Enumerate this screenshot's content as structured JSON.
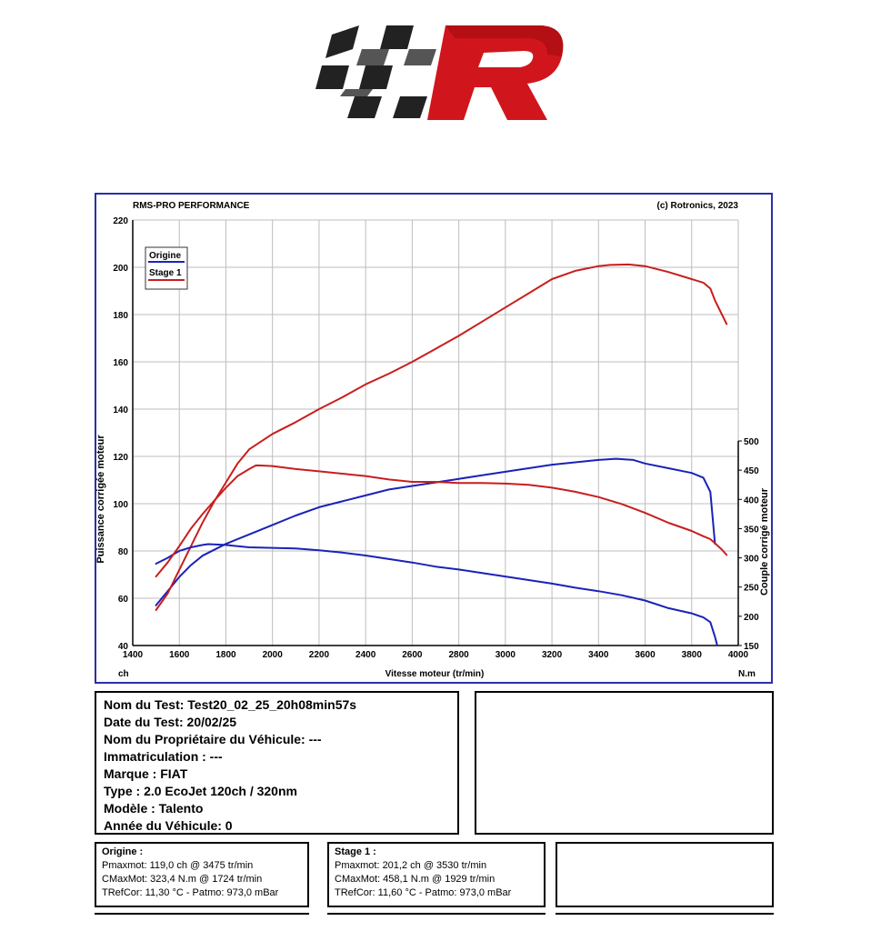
{
  "colors": {
    "origine": "#1a22b8",
    "stage1": "#c81e1e",
    "frame": "#2b2fa8",
    "grid": "#bdbdbd"
  },
  "logo": {
    "icon": "racing-r-logo"
  },
  "chart_data": {
    "type": "line",
    "title_left": "RMS-PRO PERFORMANCE",
    "title_right": "(c) Rotronics, 2023",
    "xlabel": "Vitesse moteur (tr/min)",
    "ylabel_left": "Puissance corrigée moteur",
    "ylabel_right": "Couple corrigé moteur",
    "unit_left": "ch",
    "unit_right": "N.m",
    "xlim": [
      1400,
      4000
    ],
    "ylim_left": [
      40,
      220
    ],
    "ylim_right": [
      150,
      500
    ],
    "x_ticks": [
      "1400",
      "1600",
      "1800",
      "2000",
      "2200",
      "2400",
      "2600",
      "2800",
      "3000",
      "3200",
      "3400",
      "3600",
      "3800",
      "4000"
    ],
    "y_left_ticks": [
      "40",
      "60",
      "80",
      "100",
      "120",
      "140",
      "160",
      "180",
      "200",
      "220"
    ],
    "y_right_ticks": [
      "150",
      "200",
      "250",
      "300",
      "350",
      "400",
      "450",
      "500"
    ],
    "grid": true,
    "legend_position": "top-left",
    "series": [
      {
        "name": "Origine",
        "kind": "power",
        "axis": "left",
        "color": "#1a22b8",
        "x": [
          1500,
          1550,
          1600,
          1650,
          1700,
          1800,
          1900,
          2000,
          2100,
          2200,
          2300,
          2400,
          2500,
          2600,
          2700,
          2800,
          2900,
          3000,
          3100,
          3200,
          3300,
          3400,
          3475,
          3550,
          3600,
          3700,
          3800,
          3850,
          3880,
          3900
        ],
        "y": [
          57,
          63,
          69,
          74,
          78,
          83,
          87,
          91,
          95,
          98.5,
          101,
          103.5,
          106,
          107.5,
          109,
          110.5,
          112,
          113.5,
          115,
          116.5,
          117.5,
          118.5,
          119,
          118.5,
          117,
          115,
          113,
          111,
          105,
          83
        ]
      },
      {
        "name": "Stage 1",
        "kind": "power",
        "axis": "left",
        "color": "#c81e1e",
        "x": [
          1500,
          1550,
          1600,
          1650,
          1700,
          1750,
          1800,
          1850,
          1900,
          2000,
          2100,
          2200,
          2300,
          2400,
          2500,
          2600,
          2700,
          2800,
          2900,
          3000,
          3100,
          3200,
          3300,
          3400,
          3450,
          3530,
          3600,
          3700,
          3800,
          3850,
          3880,
          3900,
          3930,
          3950
        ],
        "y": [
          55,
          62,
          72,
          82,
          92,
          101,
          109,
          117,
          123,
          129.5,
          134.5,
          140,
          145,
          150.5,
          155,
          160,
          165.5,
          171,
          177,
          183,
          189,
          195,
          198.5,
          200.5,
          201,
          201.2,
          200.5,
          198,
          195,
          193.5,
          191,
          186,
          180,
          176
        ]
      },
      {
        "name": "Origine",
        "kind": "torque",
        "axis": "right",
        "color": "#1a22b8",
        "x": [
          1500,
          1550,
          1600,
          1650,
          1700,
          1724,
          1800,
          1900,
          2000,
          2100,
          2200,
          2300,
          2400,
          2500,
          2600,
          2700,
          2800,
          2900,
          3000,
          3100,
          3200,
          3300,
          3400,
          3500,
          3600,
          3700,
          3800,
          3850,
          3880,
          3900,
          3910
        ],
        "y": [
          290,
          300,
          312,
          318,
          322,
          323.4,
          322,
          318,
          317,
          316,
          313,
          309,
          304,
          298,
          292,
          285,
          280,
          274,
          268,
          262,
          256,
          249,
          243,
          236,
          227,
          214,
          205,
          198,
          190,
          165,
          150
        ]
      },
      {
        "name": "Stage 1",
        "kind": "torque",
        "axis": "right",
        "color": "#c81e1e",
        "x": [
          1500,
          1550,
          1600,
          1650,
          1700,
          1750,
          1800,
          1850,
          1900,
          1929,
          1950,
          2000,
          2100,
          2200,
          2300,
          2400,
          2500,
          2600,
          2700,
          2800,
          2900,
          3000,
          3100,
          3200,
          3300,
          3400,
          3500,
          3600,
          3700,
          3800,
          3850,
          3880,
          3900,
          3930,
          3950
        ],
        "y": [
          268,
          292,
          320,
          350,
          375,
          398,
          420,
          440,
          452,
          458.1,
          458,
          457,
          452,
          448,
          444,
          440,
          434,
          430,
          430,
          428,
          428,
          427,
          425,
          420,
          413,
          404,
          392,
          377,
          360,
          346,
          337,
          332,
          325,
          314,
          305
        ]
      }
    ]
  },
  "test_info": {
    "lines": [
      "Nom du Test: Test20_02_25_20h08min57s",
      "Date du Test: 20/02/25",
      "Nom du Propriétaire du Véhicule: ---",
      "Immatriculation  : ---",
      "Marque  : FIAT",
      "Type  : 2.0 EcoJet 120ch / 320nm",
      "Modèle  : Talento",
      "Année du Véhicule: 0"
    ]
  },
  "summary_origine": {
    "heading": "Origine :",
    "pmax": "Pmaxmot: 119,0 ch @ 3475 tr/min",
    "cmax": "CMaxMot: 323,4 N.m @ 1724 tr/min",
    "tref": "TRefCor: 11,30 °C - Patmo: 973,0 mBar"
  },
  "summary_stage1": {
    "heading": "Stage 1 :",
    "pmax": "Pmaxmot: 201,2 ch @ 3530 tr/min",
    "cmax": "CMaxMot: 458,1 N.m @ 1929 tr/min",
    "tref": "TRefCor: 11,60 °C - Patmo: 973,0 mBar"
  }
}
